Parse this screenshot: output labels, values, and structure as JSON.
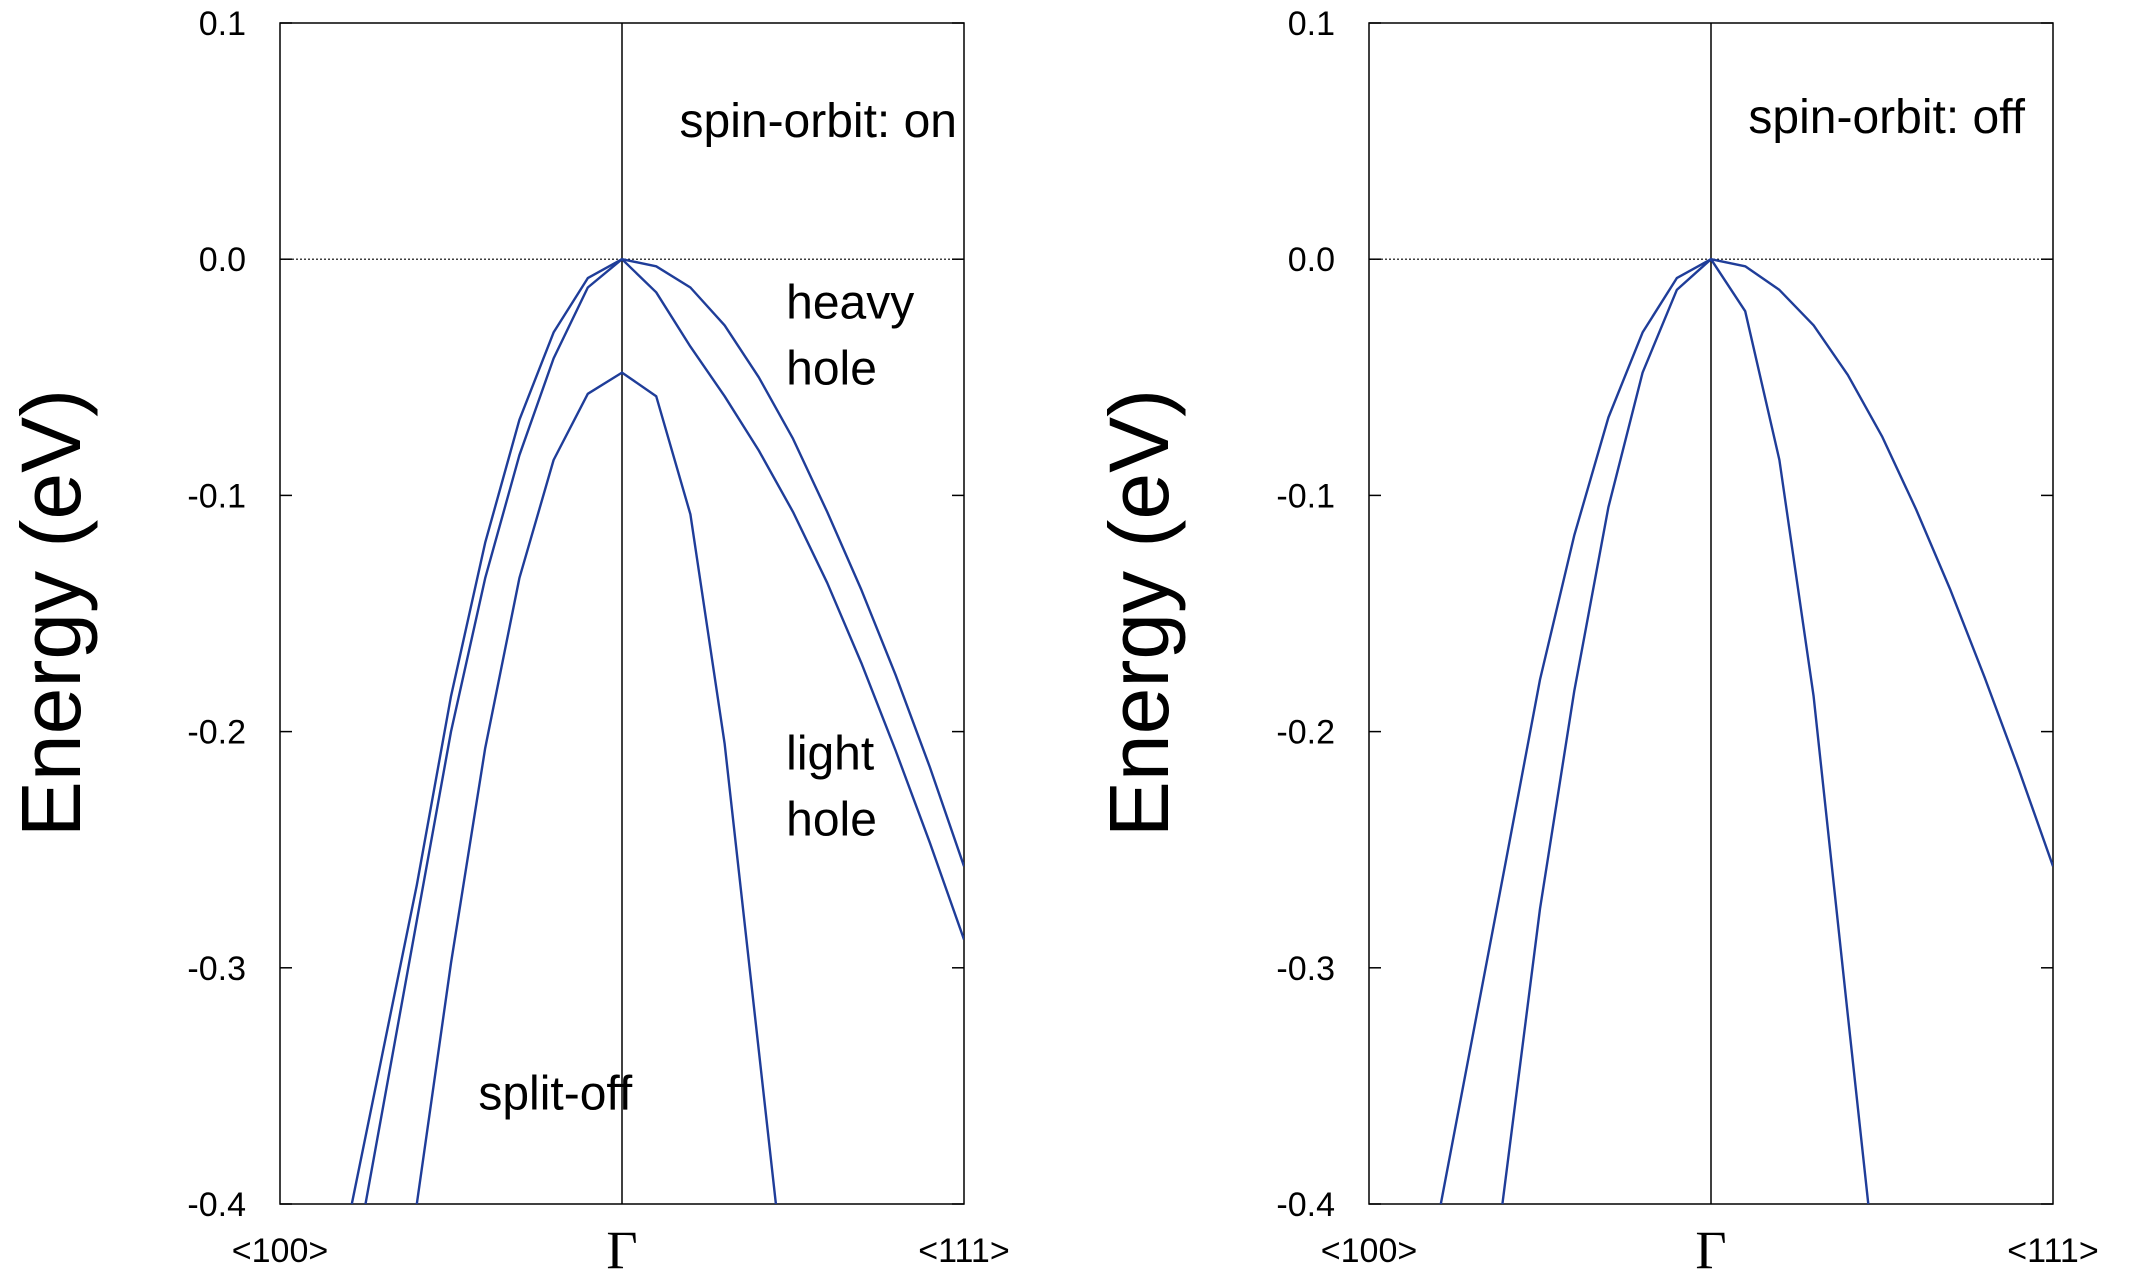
{
  "chart_data": [
    {
      "type": "line",
      "ylabel": "Energy (eV)",
      "ylim": [
        -0.4,
        0.1
      ],
      "yticks": [
        "0.1",
        "0.0",
        "-0.1",
        "-0.2",
        "-0.3",
        "-0.4"
      ],
      "xticks": [
        "<100>",
        "Γ",
        "<111>"
      ],
      "xlim": [
        -1,
        1
      ],
      "annotation": "spin-orbit: on",
      "band_labels": [
        {
          "text": "heavy",
          "x": 0.48,
          "y": -0.025
        },
        {
          "text": "hole",
          "x": 0.48,
          "y": -0.053
        },
        {
          "text": "light",
          "x": 0.48,
          "y": -0.216
        },
        {
          "text": "hole",
          "x": 0.48,
          "y": -0.244
        },
        {
          "text": "split-off",
          "x": -0.42,
          "y": -0.36
        }
      ],
      "color": "#1f3d99",
      "series": [
        {
          "x": [
            -0.79,
            -0.6,
            -0.5,
            -0.4,
            -0.3,
            -0.2,
            -0.1,
            0.0,
            0.1,
            0.2,
            0.3,
            0.4,
            0.5,
            0.6,
            0.7,
            0.8,
            0.9,
            1.0
          ],
          "y": [
            -0.4,
            -0.265,
            -0.185,
            -0.12,
            -0.068,
            -0.031,
            -0.008,
            0.0,
            -0.003,
            -0.012,
            -0.028,
            -0.05,
            -0.076,
            -0.107,
            -0.14,
            -0.176,
            -0.215,
            -0.257
          ]
        },
        {
          "x": [
            -0.75,
            -0.6,
            -0.5,
            -0.4,
            -0.3,
            -0.2,
            -0.1,
            0.0,
            0.1,
            0.2,
            0.3,
            0.4,
            0.5,
            0.6,
            0.7,
            0.8,
            0.9,
            1.0
          ],
          "y": [
            -0.4,
            -0.28,
            -0.2,
            -0.135,
            -0.083,
            -0.042,
            -0.012,
            0.0,
            -0.014,
            -0.037,
            -0.058,
            -0.081,
            -0.107,
            -0.137,
            -0.171,
            -0.208,
            -0.247,
            -0.288
          ]
        },
        {
          "x": [
            -0.6,
            -0.5,
            -0.4,
            -0.3,
            -0.2,
            -0.1,
            0.0,
            0.1,
            0.2,
            0.3,
            0.4,
            0.45
          ],
          "y": [
            -0.4,
            -0.298,
            -0.207,
            -0.135,
            -0.085,
            -0.057,
            -0.048,
            -0.058,
            -0.108,
            -0.205,
            -0.335,
            -0.4
          ]
        }
      ]
    },
    {
      "type": "line",
      "ylabel": "Energy (eV)",
      "ylim": [
        -0.4,
        0.1
      ],
      "yticks": [
        "0.1",
        "0.0",
        "-0.1",
        "-0.2",
        "-0.3",
        "-0.4"
      ],
      "xticks": [
        "<100>",
        "Γ",
        "<111>"
      ],
      "xlim": [
        -1,
        1
      ],
      "annotation": "spin-orbit: off",
      "band_labels": [],
      "color": "#1f3d99",
      "series": [
        {
          "x": [
            -0.79,
            -0.6,
            -0.5,
            -0.4,
            -0.3,
            -0.2,
            -0.1,
            0.0,
            0.1,
            0.2,
            0.3,
            0.4,
            0.5,
            0.6,
            0.7,
            0.8,
            0.9,
            1.0
          ],
          "y": [
            -0.4,
            -0.255,
            -0.178,
            -0.117,
            -0.067,
            -0.031,
            -0.008,
            0.0,
            -0.003,
            -0.013,
            -0.028,
            -0.049,
            -0.075,
            -0.106,
            -0.14,
            -0.177,
            -0.216,
            -0.257
          ]
        },
        {
          "x": [
            -0.61,
            -0.5,
            -0.4,
            -0.3,
            -0.2,
            -0.1,
            0.0,
            0.1,
            0.2,
            0.3,
            0.4,
            0.46
          ],
          "y": [
            -0.4,
            -0.275,
            -0.183,
            -0.105,
            -0.048,
            -0.013,
            0.0,
            -0.022,
            -0.085,
            -0.185,
            -0.32,
            -0.4
          ]
        }
      ]
    }
  ]
}
